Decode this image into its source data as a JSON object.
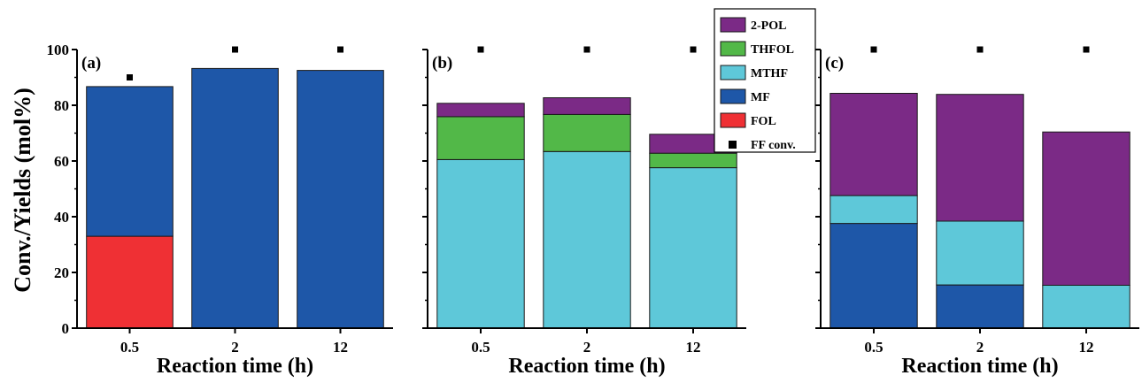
{
  "chart_data": {
    "type": "bar",
    "stacked": true,
    "ylabel": "Conv./Yields (mol%)",
    "ylim": [
      0,
      100
    ],
    "yticks": [
      "0",
      "20",
      "40",
      "60",
      "80",
      "100"
    ],
    "legend": {
      "placement": "top-center",
      "entries": [
        {
          "name": "2-POL",
          "color": "#7B2A86",
          "marker": "box"
        },
        {
          "name": "THFOL",
          "color": "#52B848",
          "marker": "box"
        },
        {
          "name": "MTHF",
          "color": "#5EC8D9",
          "marker": "box"
        },
        {
          "name": "MF",
          "color": "#1E57A8",
          "marker": "box"
        },
        {
          "name": "FOL",
          "color": "#EF3034",
          "marker": "box"
        },
        {
          "name": "FF conv.",
          "color": "#000000",
          "marker": "square"
        }
      ]
    },
    "stack_order": [
      "FOL",
      "MF",
      "MTHF",
      "THFOL",
      "2-POL"
    ],
    "panels": [
      {
        "tag": "(a)",
        "xlabel": "Reaction time (h)",
        "categories": [
          "0.5",
          "2",
          "12"
        ],
        "series": [
          {
            "name": "FOL",
            "values": [
              33,
              0,
              0
            ]
          },
          {
            "name": "MF",
            "values": [
              53.7,
              93.2,
              92.5
            ]
          },
          {
            "name": "MTHF",
            "values": [
              0,
              0,
              0
            ]
          },
          {
            "name": "THFOL",
            "values": [
              0,
              0,
              0
            ]
          },
          {
            "name": "2-POL",
            "values": [
              0,
              0,
              0
            ]
          }
        ],
        "ff_conv": [
          90,
          100,
          100
        ]
      },
      {
        "tag": "(b)",
        "xlabel": "Reaction time (h)",
        "categories": [
          "0.5",
          "2",
          "12"
        ],
        "series": [
          {
            "name": "FOL",
            "values": [
              0,
              0,
              0
            ]
          },
          {
            "name": "MF",
            "values": [
              0,
              0,
              0
            ]
          },
          {
            "name": "MTHF",
            "values": [
              60.5,
              63.4,
              57.6
            ]
          },
          {
            "name": "THFOL",
            "values": [
              15.4,
              13.3,
              5.2
            ]
          },
          {
            "name": "2-POL",
            "values": [
              4.8,
              6.0,
              6.8
            ]
          }
        ],
        "ff_conv": [
          100,
          100,
          100
        ]
      },
      {
        "tag": "(c)",
        "xlabel": "Reaction time (h)",
        "categories": [
          "0.5",
          "2",
          "12"
        ],
        "series": [
          {
            "name": "FOL",
            "values": [
              0,
              0,
              0
            ]
          },
          {
            "name": "MF",
            "values": [
              37.6,
              15.5,
              0
            ]
          },
          {
            "name": "MTHF",
            "values": [
              10.0,
              22.9,
              15.4
            ]
          },
          {
            "name": "THFOL",
            "values": [
              0,
              0,
              0
            ]
          },
          {
            "name": "2-POL",
            "values": [
              36.7,
              45.5,
              55.0
            ]
          }
        ],
        "ff_conv": [
          100,
          100,
          100
        ]
      }
    ]
  }
}
